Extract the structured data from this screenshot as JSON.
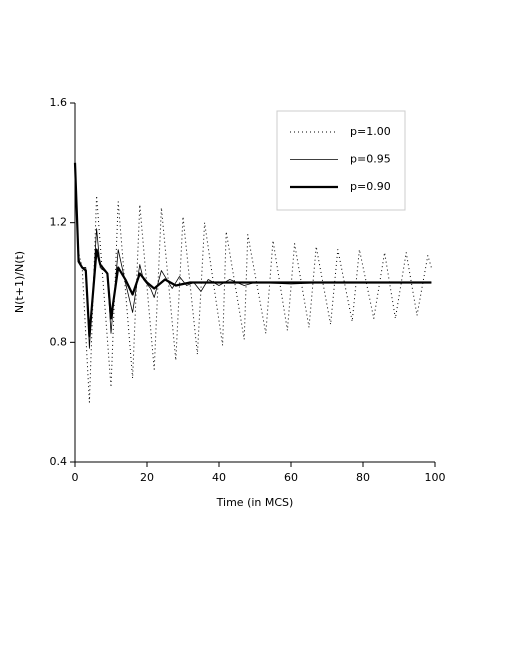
{
  "chart_data": {
    "type": "line",
    "xlabel": "Time (in MCS)",
    "ylabel": "N(t+1)/N(t)",
    "xlim": [
      0,
      100
    ],
    "xticks": [
      0,
      20,
      40,
      60,
      80,
      100
    ],
    "ylim": [
      0.4,
      1.6
    ],
    "yticks": [
      0.4,
      0.8,
      1.2,
      1.6
    ],
    "legend": "upper right",
    "series": [
      {
        "name": "p=1.00",
        "color": "#000000",
        "linestyle": "dotted",
        "linewidth": 1,
        "x": [
          0,
          1,
          2,
          4,
          6,
          10,
          12,
          16,
          18,
          22,
          24,
          28,
          30,
          34,
          36,
          41,
          42,
          47,
          48,
          53,
          55,
          59,
          61,
          65,
          67,
          71,
          73,
          77,
          79,
          83,
          86,
          89,
          92,
          95,
          98,
          99
        ],
        "values": [
          1.4,
          1.1,
          1.05,
          0.6,
          1.29,
          0.65,
          1.27,
          0.68,
          1.26,
          0.71,
          1.25,
          0.74,
          1.22,
          0.76,
          1.2,
          0.79,
          1.17,
          0.81,
          1.16,
          0.83,
          1.14,
          0.84,
          1.13,
          0.85,
          1.12,
          0.86,
          1.11,
          0.87,
          1.11,
          0.88,
          1.1,
          0.88,
          1.1,
          0.89,
          1.09,
          1.05
        ]
      },
      {
        "name": "p=0.95",
        "color": "#000000",
        "linestyle": "solid",
        "linewidth": 0.8,
        "x": [
          0,
          1,
          2,
          3,
          4,
          6,
          7,
          9,
          10,
          12,
          14,
          16,
          18,
          19,
          21,
          22,
          24,
          27,
          29,
          31,
          33,
          35,
          37,
          40,
          43,
          47,
          50,
          60,
          70,
          80,
          90,
          99
        ],
        "values": [
          1.4,
          1.08,
          1.05,
          1.05,
          0.78,
          1.18,
          1.05,
          1.03,
          0.83,
          1.11,
          1.0,
          0.9,
          1.06,
          1.01,
          0.98,
          0.95,
          1.04,
          0.98,
          1.02,
          0.99,
          1.0,
          0.97,
          1.01,
          0.99,
          1.01,
          0.99,
          1.0,
          0.995,
          1.0,
          1.0,
          1.0,
          1.0
        ]
      },
      {
        "name": "p=0.90",
        "color": "#000000",
        "linestyle": "solid",
        "linewidth": 2.2,
        "x": [
          0,
          1,
          2,
          3,
          4,
          6,
          7,
          9,
          10,
          12,
          14,
          16,
          18,
          20,
          22,
          25,
          28,
          32,
          40,
          60,
          80,
          99
        ],
        "values": [
          1.4,
          1.07,
          1.05,
          1.04,
          0.82,
          1.11,
          1.06,
          1.03,
          0.88,
          1.05,
          1.01,
          0.96,
          1.03,
          1.0,
          0.98,
          1.01,
          0.99,
          1.0,
          1.0,
          1.0,
          1.0,
          1.0
        ]
      }
    ]
  }
}
